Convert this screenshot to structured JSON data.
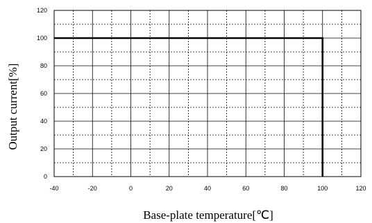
{
  "chart_data": {
    "type": "line",
    "xlabel": "Base-plate temperature[℃]",
    "ylabel": "Output current[%]",
    "xlim": [
      -40,
      120
    ],
    "ylim": [
      0,
      120
    ],
    "x_ticks": [
      -40,
      -20,
      0,
      20,
      40,
      60,
      80,
      100,
      120
    ],
    "y_ticks": [
      0,
      20,
      40,
      60,
      80,
      100,
      120
    ],
    "x_tick_labels": [
      "-40",
      "-20",
      "0",
      "20",
      "40",
      "60",
      "80",
      "100",
      "120"
    ],
    "y_tick_labels": [
      "0",
      "20",
      "40",
      "60",
      "80",
      "100",
      "120"
    ],
    "grid": {
      "major": "solid",
      "minor": "dashed",
      "x_minor_step": 10,
      "y_minor_step": 10
    },
    "series": [
      {
        "x": [
          -40,
          100,
          100
        ],
        "y": [
          100,
          100,
          0
        ],
        "color": "#000000"
      }
    ]
  }
}
